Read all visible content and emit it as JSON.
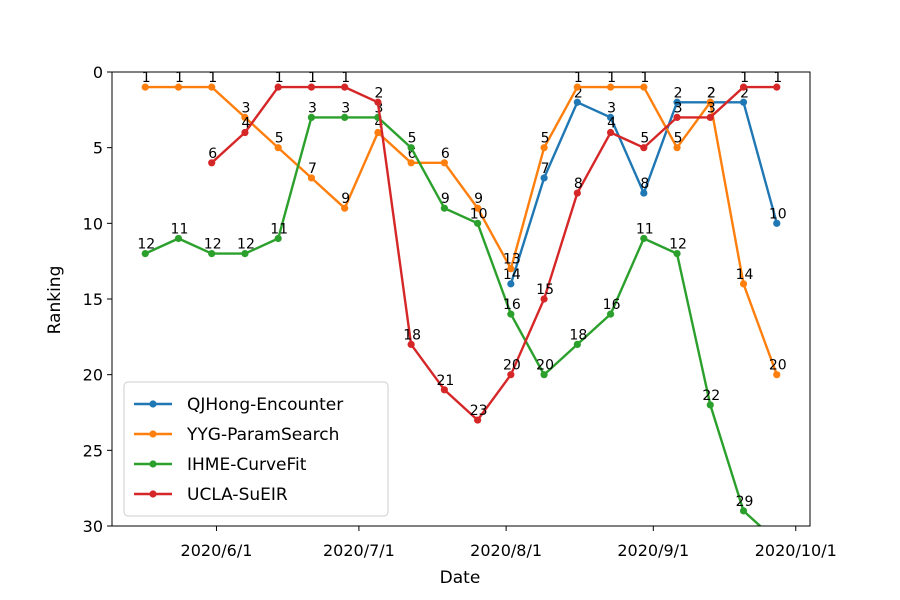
{
  "chart_data": {
    "type": "line",
    "xlabel": "Date",
    "ylabel": "Ranking",
    "ylim": [
      0,
      30
    ],
    "y_inverted": true,
    "yticks": [
      0,
      5,
      10,
      15,
      20,
      25,
      30
    ],
    "xticks": [
      {
        "date": "2020-06-01",
        "label": "2020/6/1"
      },
      {
        "date": "2020-07-01",
        "label": "2020/7/1"
      },
      {
        "date": "2020-08-01",
        "label": "2020/8/1"
      },
      {
        "date": "2020-09-01",
        "label": "2020/9/1"
      },
      {
        "date": "2020-10-01",
        "label": "2020/10/1"
      }
    ],
    "x": [
      "2020-05-11",
      "2020-05-18",
      "2020-05-25",
      "2020-06-01",
      "2020-06-08",
      "2020-06-15",
      "2020-06-22",
      "2020-06-29",
      "2020-07-06",
      "2020-07-13",
      "2020-07-20",
      "2020-07-27",
      "2020-08-03",
      "2020-08-10",
      "2020-08-17",
      "2020-08-24",
      "2020-08-31",
      "2020-09-07",
      "2020-09-14",
      "2020-09-21",
      "2020-09-28"
    ],
    "series": [
      {
        "name": "QJHong-Encounter",
        "color": "#1f77b4",
        "values": [
          null,
          null,
          null,
          null,
          null,
          null,
          null,
          null,
          null,
          null,
          null,
          14,
          7,
          2,
          3,
          8,
          2,
          2,
          2,
          10,
          null
        ]
      },
      {
        "name": "YYG-ParamSearch",
        "color": "#ff7f0e",
        "values": [
          1,
          1,
          1,
          3,
          5,
          7,
          9,
          4,
          6,
          6,
          9,
          13,
          5,
          1,
          1,
          1,
          5,
          2,
          14,
          20,
          null
        ]
      },
      {
        "name": "IHME-CurveFit",
        "color": "#2ca02c",
        "values": [
          12,
          11,
          12,
          12,
          11,
          3,
          3,
          3,
          5,
          9,
          10,
          16,
          20,
          18,
          16,
          11,
          12,
          22,
          29,
          31,
          null
        ]
      },
      {
        "name": "UCLA-SuEIR",
        "color": "#d62728",
        "values": [
          null,
          null,
          6,
          4,
          1,
          1,
          1,
          2,
          18,
          21,
          23,
          20,
          15,
          8,
          4,
          5,
          3,
          3,
          1,
          1,
          null
        ]
      }
    ],
    "x_points": [
      "2020-05-17",
      "2020-05-24",
      "2020-05-31",
      "2020-06-07",
      "2020-06-14",
      "2020-06-21",
      "2020-06-28",
      "2020-07-05",
      "2020-07-12",
      "2020-07-19",
      "2020-07-26",
      "2020-08-02",
      "2020-08-09",
      "2020-08-16",
      "2020-08-23",
      "2020-08-30",
      "2020-09-06",
      "2020-09-13",
      "2020-09-20",
      "2020-09-27"
    ],
    "legend_position": "lower-left",
    "grid": false
  }
}
